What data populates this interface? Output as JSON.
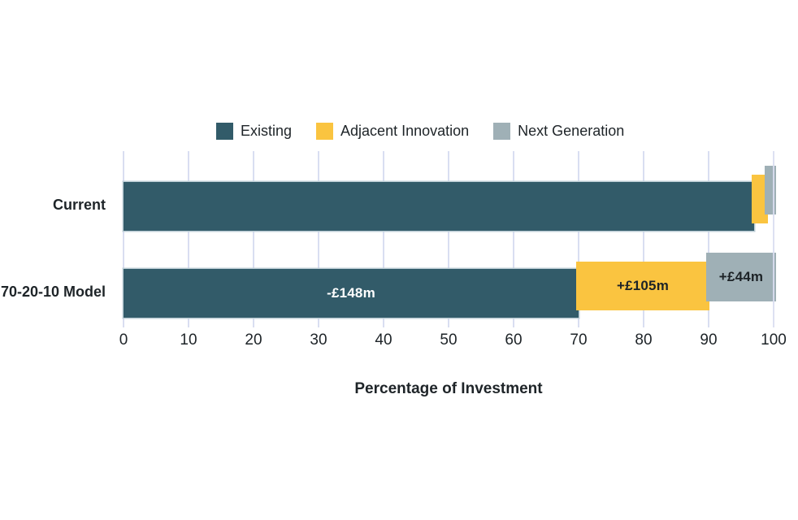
{
  "colors": {
    "background": "#ffffff",
    "grid": "#d9def1",
    "text": "#1e2428",
    "bar_edge": "#bccdd5"
  },
  "chart_data": {
    "type": "bar",
    "orientation": "horizontal",
    "stacked": true,
    "categories": [
      "Current",
      "70-20-10 Model"
    ],
    "series": [
      {
        "name": "Existing",
        "color": "#325b69",
        "values": [
          97,
          70
        ],
        "bar_labels": [
          "",
          "-£148m"
        ],
        "label_color": "#ffffff"
      },
      {
        "name": "Adjacent Innovation",
        "color": "#fac440",
        "values": [
          2,
          20
        ],
        "bar_labels": [
          "",
          "+£105m"
        ],
        "label_color": "#1d2327"
      },
      {
        "name": "Next Generation",
        "color": "#9fb0b6",
        "values": [
          1,
          10
        ],
        "bar_labels": [
          "",
          "+£44m"
        ],
        "label_color": "#1d2327"
      }
    ],
    "xlabel": "Percentage of Investment",
    "xlim": [
      0,
      100
    ],
    "xticks": [
      0,
      10,
      20,
      30,
      40,
      50,
      60,
      70,
      80,
      90,
      100
    ],
    "grid": "vertical",
    "legend_position": "top"
  }
}
